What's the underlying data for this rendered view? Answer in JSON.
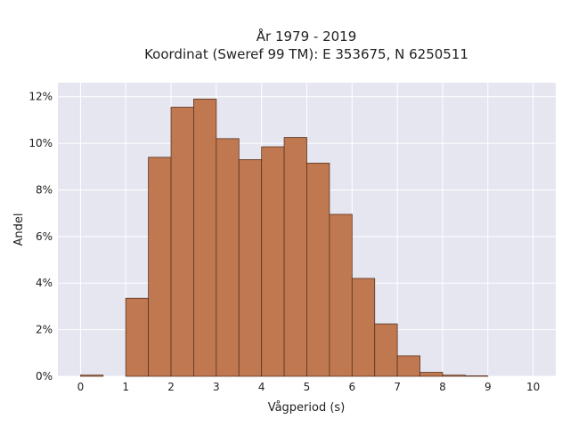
{
  "chart_data": {
    "type": "bar",
    "title_line1": "År 1979 - 2019",
    "title_line2": "Koordinat (Sweref 99 TM): E 353675, N 6250511",
    "xlabel": "Vågperiod (s)",
    "ylabel": "Andel",
    "bin_width": 0.5,
    "bins": [
      {
        "x0": 0.0,
        "value": 0.05
      },
      {
        "x0": 0.5,
        "value": 0.0
      },
      {
        "x0": 1.0,
        "value": 3.35
      },
      {
        "x0": 1.5,
        "value": 9.4
      },
      {
        "x0": 2.0,
        "value": 11.55
      },
      {
        "x0": 2.5,
        "value": 11.9
      },
      {
        "x0": 3.0,
        "value": 10.2
      },
      {
        "x0": 3.5,
        "value": 9.3
      },
      {
        "x0": 4.0,
        "value": 9.85
      },
      {
        "x0": 4.5,
        "value": 10.25
      },
      {
        "x0": 5.0,
        "value": 9.15
      },
      {
        "x0": 5.5,
        "value": 6.95
      },
      {
        "x0": 6.0,
        "value": 4.2
      },
      {
        "x0": 6.5,
        "value": 2.25
      },
      {
        "x0": 7.0,
        "value": 0.88
      },
      {
        "x0": 7.5,
        "value": 0.17
      },
      {
        "x0": 8.0,
        "value": 0.05
      },
      {
        "x0": 8.5,
        "value": 0.02
      }
    ],
    "xlim": [
      -0.5,
      10.5
    ],
    "ylim": [
      0,
      12.6
    ],
    "x_ticks": [
      "0",
      "1",
      "2",
      "3",
      "4",
      "5",
      "6",
      "7",
      "8",
      "9",
      "10"
    ],
    "y_ticks": [
      "0%",
      "2%",
      "4%",
      "6%",
      "8%",
      "10%",
      "12%"
    ],
    "grid": true,
    "colors": {
      "bar_fill": "#c07850",
      "bar_edge": "#5a3420",
      "plot_bg": "#e5e6f0",
      "grid": "#ffffff"
    }
  }
}
